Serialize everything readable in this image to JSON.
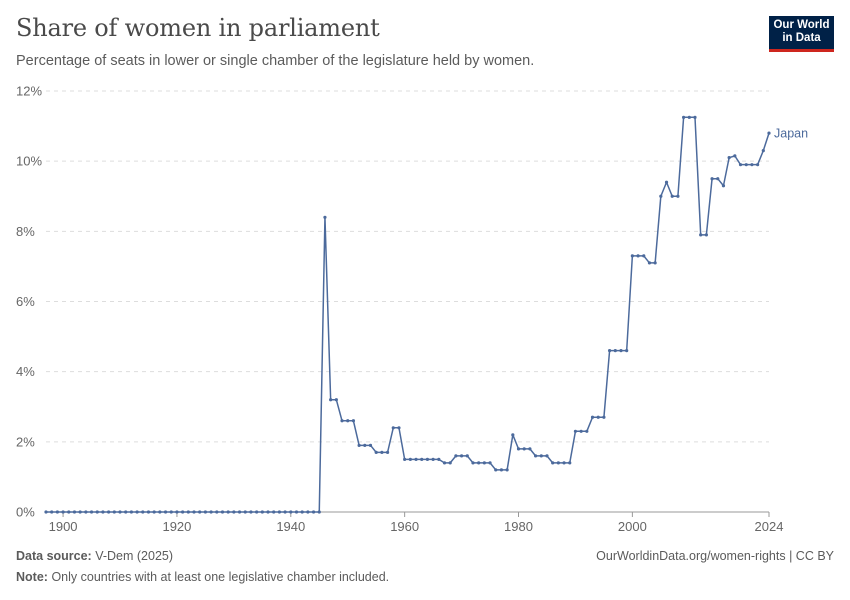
{
  "header": {
    "title": "Share of women in parliament",
    "subtitle": "Percentage of seats in lower or single chamber of the legislature held by women.",
    "logo_line1": "Our World",
    "logo_line2": "in Data"
  },
  "footer": {
    "source_label": "Data source:",
    "source_text": "V-Dem (2025)",
    "note_label": "Note:",
    "note_text": "Only countries with at least one legislative chamber included.",
    "right_text": "OurWorldinData.org/women-rights | CC BY"
  },
  "colors": {
    "series": "#4c6a9c",
    "grid": "#dddddd",
    "axis": "#666666"
  },
  "chart_data": {
    "type": "line",
    "title": "Share of women in parliament",
    "subtitle": "Percentage of seats in lower or single chamber of the legislature held by women.",
    "xlabel": "",
    "ylabel": "",
    "xlim": [
      1897,
      2024
    ],
    "ylim": [
      0,
      12
    ],
    "grid": true,
    "x_ticks": [
      1900,
      1920,
      1940,
      1960,
      1980,
      2000,
      2024
    ],
    "y_ticks": [
      0,
      2,
      4,
      6,
      8,
      10,
      12
    ],
    "y_tick_labels": [
      "0%",
      "2%",
      "4%",
      "6%",
      "8%",
      "10%",
      "12%"
    ],
    "series": [
      {
        "name": "Japan",
        "points": [
          [
            1897,
            0
          ],
          [
            1898,
            0
          ],
          [
            1899,
            0
          ],
          [
            1900,
            0
          ],
          [
            1901,
            0
          ],
          [
            1902,
            0
          ],
          [
            1903,
            0
          ],
          [
            1904,
            0
          ],
          [
            1905,
            0
          ],
          [
            1906,
            0
          ],
          [
            1907,
            0
          ],
          [
            1908,
            0
          ],
          [
            1909,
            0
          ],
          [
            1910,
            0
          ],
          [
            1911,
            0
          ],
          [
            1912,
            0
          ],
          [
            1913,
            0
          ],
          [
            1914,
            0
          ],
          [
            1915,
            0
          ],
          [
            1916,
            0
          ],
          [
            1917,
            0
          ],
          [
            1918,
            0
          ],
          [
            1919,
            0
          ],
          [
            1920,
            0
          ],
          [
            1921,
            0
          ],
          [
            1922,
            0
          ],
          [
            1923,
            0
          ],
          [
            1924,
            0
          ],
          [
            1925,
            0
          ],
          [
            1926,
            0
          ],
          [
            1927,
            0
          ],
          [
            1928,
            0
          ],
          [
            1929,
            0
          ],
          [
            1930,
            0
          ],
          [
            1931,
            0
          ],
          [
            1932,
            0
          ],
          [
            1933,
            0
          ],
          [
            1934,
            0
          ],
          [
            1935,
            0
          ],
          [
            1936,
            0
          ],
          [
            1937,
            0
          ],
          [
            1938,
            0
          ],
          [
            1939,
            0
          ],
          [
            1940,
            0
          ],
          [
            1941,
            0
          ],
          [
            1942,
            0
          ],
          [
            1943,
            0
          ],
          [
            1944,
            0
          ],
          [
            1945,
            0
          ],
          [
            1946,
            8.4
          ],
          [
            1947,
            3.2
          ],
          [
            1948,
            3.2
          ],
          [
            1949,
            2.6
          ],
          [
            1950,
            2.6
          ],
          [
            1951,
            2.6
          ],
          [
            1952,
            1.9
          ],
          [
            1953,
            1.9
          ],
          [
            1954,
            1.9
          ],
          [
            1955,
            1.7
          ],
          [
            1956,
            1.7
          ],
          [
            1957,
            1.7
          ],
          [
            1958,
            2.4
          ],
          [
            1959,
            2.4
          ],
          [
            1960,
            1.5
          ],
          [
            1961,
            1.5
          ],
          [
            1962,
            1.5
          ],
          [
            1963,
            1.5
          ],
          [
            1964,
            1.5
          ],
          [
            1965,
            1.5
          ],
          [
            1966,
            1.5
          ],
          [
            1967,
            1.4
          ],
          [
            1968,
            1.4
          ],
          [
            1969,
            1.6
          ],
          [
            1970,
            1.6
          ],
          [
            1971,
            1.6
          ],
          [
            1972,
            1.4
          ],
          [
            1973,
            1.4
          ],
          [
            1974,
            1.4
          ],
          [
            1975,
            1.4
          ],
          [
            1976,
            1.2
          ],
          [
            1977,
            1.2
          ],
          [
            1978,
            1.2
          ],
          [
            1979,
            2.2
          ],
          [
            1980,
            1.8
          ],
          [
            1981,
            1.8
          ],
          [
            1982,
            1.8
          ],
          [
            1983,
            1.6
          ],
          [
            1984,
            1.6
          ],
          [
            1985,
            1.6
          ],
          [
            1986,
            1.4
          ],
          [
            1987,
            1.4
          ],
          [
            1988,
            1.4
          ],
          [
            1989,
            1.4
          ],
          [
            1990,
            2.3
          ],
          [
            1991,
            2.3
          ],
          [
            1992,
            2.3
          ],
          [
            1993,
            2.7
          ],
          [
            1994,
            2.7
          ],
          [
            1995,
            2.7
          ],
          [
            1996,
            4.6
          ],
          [
            1997,
            4.6
          ],
          [
            1998,
            4.6
          ],
          [
            1999,
            4.6
          ],
          [
            2000,
            7.3
          ],
          [
            2001,
            7.3
          ],
          [
            2002,
            7.3
          ],
          [
            2003,
            7.1
          ],
          [
            2004,
            7.1
          ],
          [
            2005,
            9.0
          ],
          [
            2006,
            9.4
          ],
          [
            2007,
            9.0
          ],
          [
            2008,
            9.0
          ],
          [
            2009,
            11.25
          ],
          [
            2010,
            11.25
          ],
          [
            2011,
            11.25
          ],
          [
            2012,
            7.9
          ],
          [
            2013,
            7.9
          ],
          [
            2014,
            9.5
          ],
          [
            2015,
            9.5
          ],
          [
            2016,
            9.3
          ],
          [
            2017,
            10.1
          ],
          [
            2018,
            10.15
          ],
          [
            2019,
            9.9
          ],
          [
            2020,
            9.9
          ],
          [
            2021,
            9.9
          ],
          [
            2022,
            9.9
          ],
          [
            2023,
            10.3
          ],
          [
            2024,
            10.8
          ]
        ]
      }
    ]
  }
}
